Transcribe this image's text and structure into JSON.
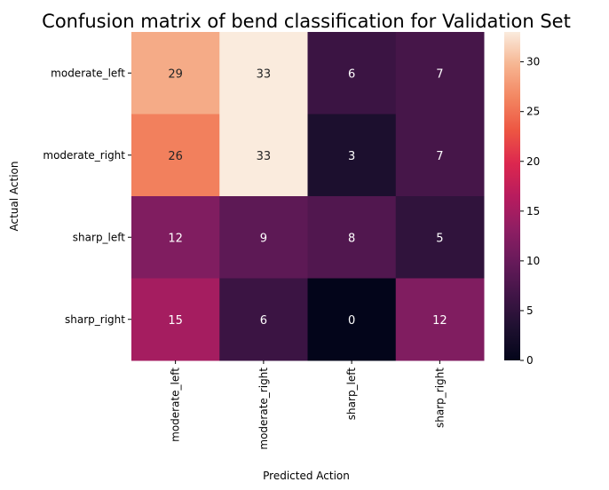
{
  "chart_data": {
    "type": "heatmap",
    "title": "Confusion matrix of bend classification for Validation Set",
    "xlabel": "Predicted Action",
    "ylabel": "Actual Action",
    "x_categories": [
      "moderate_left",
      "moderate_right",
      "sharp_left",
      "sharp_right"
    ],
    "y_categories": [
      "moderate_left",
      "moderate_right",
      "sharp_left",
      "sharp_right"
    ],
    "values": [
      [
        29,
        33,
        6,
        7
      ],
      [
        26,
        33,
        3,
        7
      ],
      [
        12,
        9,
        8,
        5
      ],
      [
        15,
        6,
        0,
        12
      ]
    ],
    "colorbar": {
      "range": [
        0,
        33
      ],
      "ticks": [
        0,
        5,
        10,
        15,
        20,
        25,
        30
      ],
      "colormap": "rocket"
    }
  }
}
